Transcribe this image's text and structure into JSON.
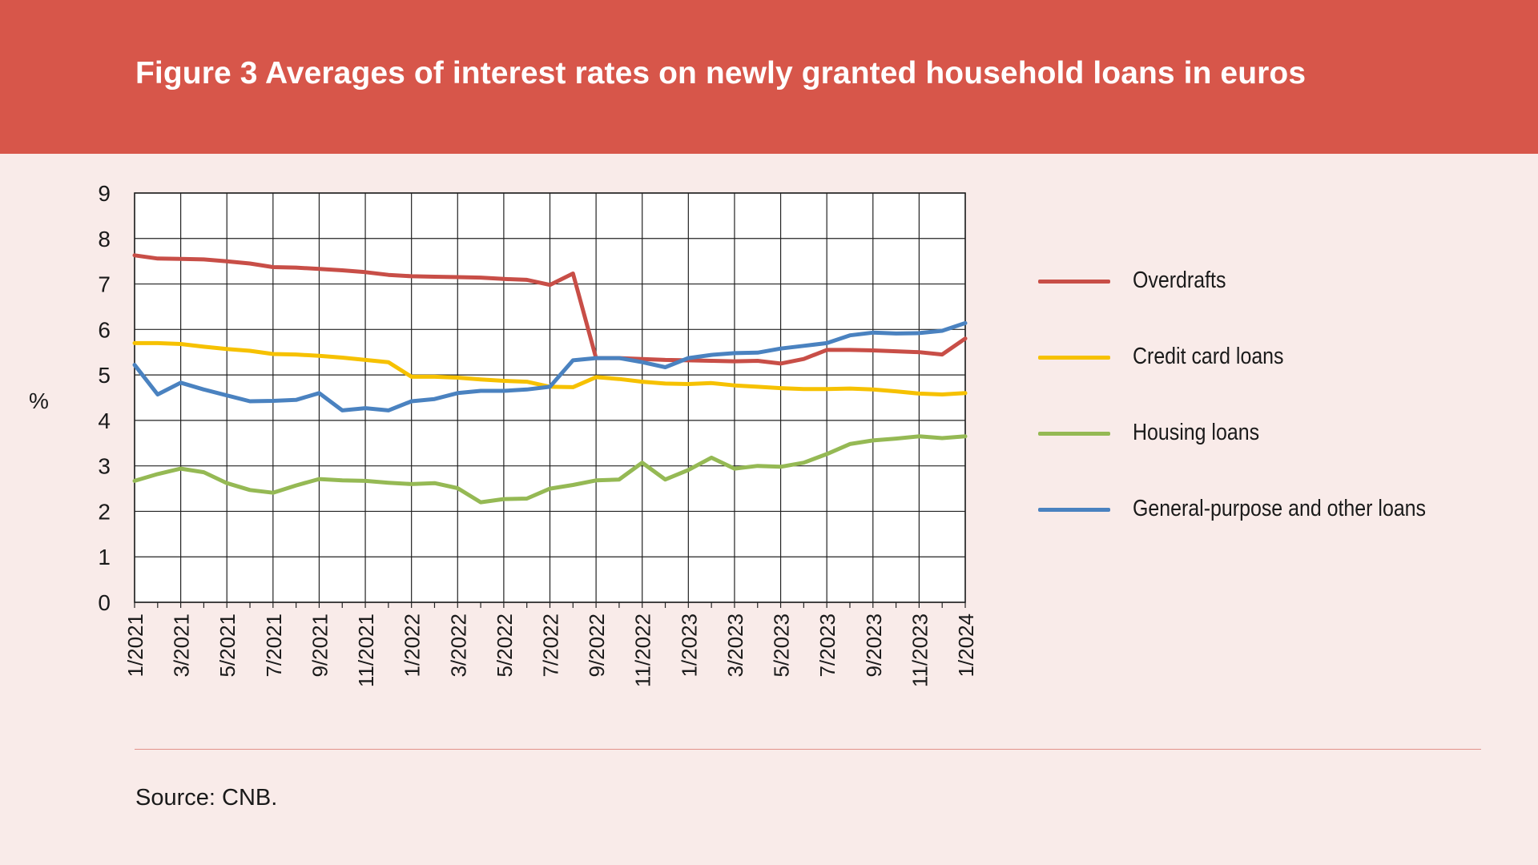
{
  "header": {
    "title": "Figure 3 Averages of interest rates on newly granted household loans in euros"
  },
  "source": "Source: CNB.",
  "chart_data": {
    "type": "line",
    "title": "Figure 3 Averages of interest rates on newly granted household loans in euros",
    "xlabel": "",
    "ylabel": "%",
    "ylim": [
      0,
      9
    ],
    "yticks": [
      "0",
      "1",
      "2",
      "3",
      "4",
      "5",
      "6",
      "7",
      "8",
      "9"
    ],
    "grid": true,
    "legend_position": "right",
    "x": [
      "1/2021",
      "2/2021",
      "3/2021",
      "4/2021",
      "5/2021",
      "6/2021",
      "7/2021",
      "8/2021",
      "9/2021",
      "10/2021",
      "11/2021",
      "12/2021",
      "1/2022",
      "2/2022",
      "3/2022",
      "4/2022",
      "5/2022",
      "6/2022",
      "7/2022",
      "8/2022",
      "9/2022",
      "10/2022",
      "11/2022",
      "12/2022",
      "1/2023",
      "2/2023",
      "3/2023",
      "4/2023",
      "5/2023",
      "6/2023",
      "7/2023",
      "8/2023",
      "9/2023",
      "10/2023",
      "11/2023",
      "12/2023",
      "1/2024"
    ],
    "x_tick_labels": [
      "1/2021",
      "3/2021",
      "5/2021",
      "7/2021",
      "9/2021",
      "11/2021",
      "1/2022",
      "3/2022",
      "5/2022",
      "7/2022",
      "9/2022",
      "11/2022",
      "1/2023",
      "3/2023",
      "5/2023",
      "7/2023",
      "9/2023",
      "11/2023",
      "1/2024"
    ],
    "series": [
      {
        "name": "Overdrafts",
        "color": "#c84e47",
        "values": [
          7.63,
          7.56,
          7.55,
          7.54,
          7.5,
          7.45,
          7.37,
          7.36,
          7.33,
          7.3,
          7.26,
          7.2,
          7.17,
          7.16,
          7.15,
          7.14,
          7.11,
          7.09,
          6.98,
          7.23,
          5.37,
          5.37,
          5.35,
          5.33,
          5.32,
          5.31,
          5.3,
          5.31,
          5.25,
          5.35,
          5.55,
          5.55,
          5.54,
          5.52,
          5.5,
          5.45,
          5.8
        ]
      },
      {
        "name": "Credit card loans",
        "color": "#f6c100",
        "values": [
          5.7,
          5.7,
          5.68,
          5.62,
          5.57,
          5.53,
          5.46,
          5.45,
          5.42,
          5.38,
          5.33,
          5.28,
          4.96,
          4.96,
          4.94,
          4.9,
          4.87,
          4.85,
          4.74,
          4.73,
          4.95,
          4.91,
          4.85,
          4.81,
          4.8,
          4.82,
          4.77,
          4.74,
          4.71,
          4.69,
          4.69,
          4.7,
          4.68,
          4.64,
          4.59,
          4.57,
          4.6
        ]
      },
      {
        "name": "Housing loans",
        "color": "#95b954",
        "values": [
          2.67,
          2.82,
          2.94,
          2.86,
          2.62,
          2.47,
          2.41,
          2.57,
          2.71,
          2.68,
          2.67,
          2.63,
          2.6,
          2.62,
          2.51,
          2.2,
          2.27,
          2.28,
          2.5,
          2.58,
          2.68,
          2.7,
          3.07,
          2.7,
          2.91,
          3.18,
          2.94,
          3.0,
          2.98,
          3.07,
          3.26,
          3.48,
          3.56,
          3.6,
          3.65,
          3.61,
          3.65
        ]
      },
      {
        "name": "General-purpose and other loans",
        "color": "#4a82c0",
        "values": [
          5.22,
          4.57,
          4.83,
          4.68,
          4.55,
          4.42,
          4.43,
          4.45,
          4.6,
          4.22,
          4.27,
          4.22,
          4.42,
          4.47,
          4.6,
          4.65,
          4.65,
          4.68,
          4.74,
          5.32,
          5.37,
          5.37,
          5.28,
          5.17,
          5.37,
          5.44,
          5.48,
          5.49,
          5.58,
          5.64,
          5.7,
          5.87,
          5.93,
          5.91,
          5.92,
          5.97,
          6.14
        ]
      }
    ]
  }
}
